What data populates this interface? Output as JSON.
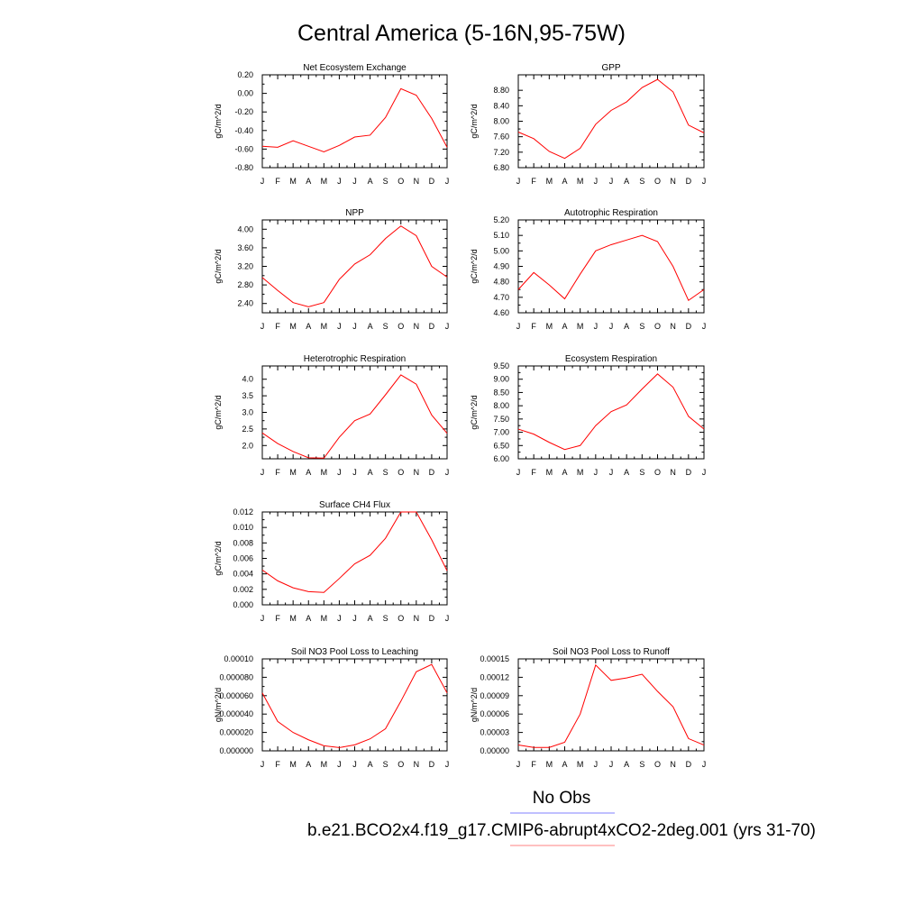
{
  "figure": {
    "title": "Central America (5-16N,95-75W)",
    "legend": [
      {
        "label": "No Obs",
        "color": "#8080ff"
      },
      {
        "label": "b.e21.BCO2x4.f19_g17.CMIP6-abrupt4xCO2-2deg.001 (yrs 31-70)",
        "color": "#ff8080"
      }
    ]
  },
  "chart_data": [
    {
      "type": "line",
      "title": "Net Ecosystem Exchange",
      "ylabel": "gC/m^2/d",
      "categories": [
        "J",
        "F",
        "M",
        "A",
        "M",
        "J",
        "J",
        "A",
        "S",
        "O",
        "N",
        "D",
        "J"
      ],
      "ylim": [
        -0.8,
        0.2
      ],
      "yticks": [
        "0.20",
        "0.00",
        "-0.20",
        "-0.40",
        "-0.60",
        "-0.80"
      ],
      "ytick_values": [
        0.2,
        0.0,
        -0.2,
        -0.4,
        -0.6,
        -0.8
      ],
      "series": [
        {
          "values": [
            -0.57,
            -0.58,
            -0.51,
            -0.57,
            -0.63,
            -0.56,
            -0.47,
            -0.45,
            -0.26,
            0.05,
            -0.02,
            -0.27,
            -0.58
          ]
        }
      ]
    },
    {
      "type": "line",
      "title": "GPP",
      "ylabel": "gC/m^2/d",
      "categories": [
        "J",
        "F",
        "M",
        "A",
        "M",
        "J",
        "J",
        "A",
        "S",
        "O",
        "N",
        "D",
        "J"
      ],
      "ylim": [
        6.8,
        9.2
      ],
      "yticks": [
        "8.80",
        "8.40",
        "8.00",
        "7.60",
        "7.20",
        "6.80"
      ],
      "ytick_values": [
        8.8,
        8.4,
        8.0,
        7.6,
        7.2,
        6.8
      ],
      "series": [
        {
          "values": [
            7.72,
            7.55,
            7.22,
            7.04,
            7.3,
            7.92,
            8.28,
            8.5,
            8.87,
            9.08,
            8.76,
            7.9,
            7.7
          ]
        }
      ]
    },
    {
      "type": "line",
      "title": "NPP",
      "ylabel": "gC/m^2/d",
      "categories": [
        "J",
        "F",
        "M",
        "A",
        "M",
        "J",
        "J",
        "A",
        "S",
        "O",
        "N",
        "D",
        "J"
      ],
      "ylim": [
        2.2,
        4.2
      ],
      "yticks": [
        "4.00",
        "3.60",
        "3.20",
        "2.80",
        "2.40"
      ],
      "ytick_values": [
        4.0,
        3.6,
        3.2,
        2.8,
        2.4
      ],
      "series": [
        {
          "values": [
            2.96,
            2.68,
            2.42,
            2.33,
            2.42,
            2.92,
            3.25,
            3.45,
            3.8,
            4.07,
            3.86,
            3.2,
            2.97
          ]
        }
      ]
    },
    {
      "type": "line",
      "title": "Autotrophic Respiration",
      "ylabel": "gC/m^2/d",
      "categories": [
        "J",
        "F",
        "M",
        "A",
        "M",
        "J",
        "J",
        "A",
        "S",
        "O",
        "N",
        "D",
        "J"
      ],
      "ylim": [
        4.6,
        5.2
      ],
      "yticks": [
        "5.20",
        "5.10",
        "5.00",
        "4.90",
        "4.80",
        "4.70",
        "4.60"
      ],
      "ytick_values": [
        5.2,
        5.1,
        5.0,
        4.9,
        4.8,
        4.7,
        4.6
      ],
      "series": [
        {
          "values": [
            4.75,
            4.86,
            4.78,
            4.69,
            4.85,
            5.0,
            5.04,
            5.07,
            5.1,
            5.06,
            4.9,
            4.68,
            4.75
          ]
        }
      ]
    },
    {
      "type": "line",
      "title": "Heterotrophic Respiration",
      "ylabel": "gC/m^2/d",
      "categories": [
        "J",
        "F",
        "M",
        "A",
        "M",
        "J",
        "J",
        "A",
        "S",
        "O",
        "N",
        "D",
        "J"
      ],
      "ylim": [
        1.6,
        4.4
      ],
      "yticks": [
        "4.0",
        "3.5",
        "3.0",
        "2.5",
        "2.0"
      ],
      "ytick_values": [
        4.0,
        3.5,
        3.0,
        2.5,
        2.0
      ],
      "series": [
        {
          "values": [
            2.38,
            2.06,
            1.82,
            1.63,
            1.62,
            2.25,
            2.75,
            2.95,
            3.53,
            4.13,
            3.85,
            2.92,
            2.37
          ]
        }
      ]
    },
    {
      "type": "line",
      "title": "Ecosystem Respiration",
      "ylabel": "gC/m^2/d",
      "categories": [
        "J",
        "F",
        "M",
        "A",
        "M",
        "J",
        "J",
        "A",
        "S",
        "O",
        "N",
        "D",
        "J"
      ],
      "ylim": [
        6.0,
        9.5
      ],
      "yticks": [
        "9.50",
        "9.00",
        "8.50",
        "8.00",
        "7.50",
        "7.00",
        "6.50",
        "6.00"
      ],
      "ytick_values": [
        9.5,
        9.0,
        8.5,
        8.0,
        7.5,
        7.0,
        6.5,
        6.0
      ],
      "series": [
        {
          "values": [
            7.12,
            6.93,
            6.62,
            6.35,
            6.5,
            7.25,
            7.78,
            8.03,
            8.63,
            9.2,
            8.7,
            7.6,
            7.12
          ]
        }
      ]
    },
    {
      "type": "line",
      "title": "Surface CH4 Flux",
      "ylabel": "gC/m^2/d",
      "categories": [
        "J",
        "F",
        "M",
        "A",
        "M",
        "J",
        "J",
        "A",
        "S",
        "O",
        "N",
        "D",
        "J"
      ],
      "ylim": [
        0.0,
        0.012
      ],
      "yticks": [
        "0.012",
        "0.010",
        "0.008",
        "0.006",
        "0.004",
        "0.002",
        "0.000"
      ],
      "ytick_values": [
        0.012,
        0.01,
        0.008,
        0.006,
        0.004,
        0.002,
        0.0
      ],
      "series": [
        {
          "values": [
            0.0045,
            0.0031,
            0.0022,
            0.0017,
            0.0016,
            0.0034,
            0.0053,
            0.0064,
            0.0086,
            0.012,
            0.012,
            0.0084,
            0.0044
          ]
        }
      ]
    },
    {
      "type": "line",
      "title": "Soil NO3 Pool Loss to Leaching",
      "ylabel": "gN/m^2/d",
      "categories": [
        "J",
        "F",
        "M",
        "A",
        "M",
        "J",
        "J",
        "A",
        "S",
        "O",
        "N",
        "D",
        "J"
      ],
      "ylim": [
        0.0,
        0.0001
      ],
      "yticks": [
        "0.00010",
        "0.000080",
        "0.000060",
        "0.000040",
        "0.000020",
        "0.000000"
      ],
      "ytick_values": [
        0.0001,
        8e-05,
        6e-05,
        4e-05,
        2e-05,
        0.0
      ],
      "series": [
        {
          "values": [
            6.3e-05,
            3.2e-05,
            2e-05,
            1.2e-05,
            5.5e-06,
            3.5e-06,
            6.5e-06,
            1.3e-05,
            2.4e-05,
            5.4e-05,
            8.6e-05,
            9.4e-05,
            6.3e-05
          ]
        }
      ]
    },
    {
      "type": "line",
      "title": "Soil NO3 Pool Loss to Runoff",
      "ylabel": "gN/m^2/d",
      "categories": [
        "J",
        "F",
        "M",
        "A",
        "M",
        "J",
        "J",
        "A",
        "S",
        "O",
        "N",
        "D",
        "J"
      ],
      "ylim": [
        0.0,
        0.00015
      ],
      "yticks": [
        "0.00015",
        "0.00012",
        "0.00009",
        "0.00006",
        "0.00003",
        "0.00000"
      ],
      "ytick_values": [
        0.00015,
        0.00012,
        9e-05,
        6e-05,
        3e-05,
        0.0
      ],
      "series": [
        {
          "values": [
            9.5e-06,
            5.5e-06,
            5.5e-06,
            1.4e-05,
            6e-05,
            0.00014,
            0.000115,
            0.000119,
            0.000125,
            9.7e-05,
            7.2e-05,
            2e-05,
            9.5e-06
          ]
        }
      ]
    }
  ]
}
